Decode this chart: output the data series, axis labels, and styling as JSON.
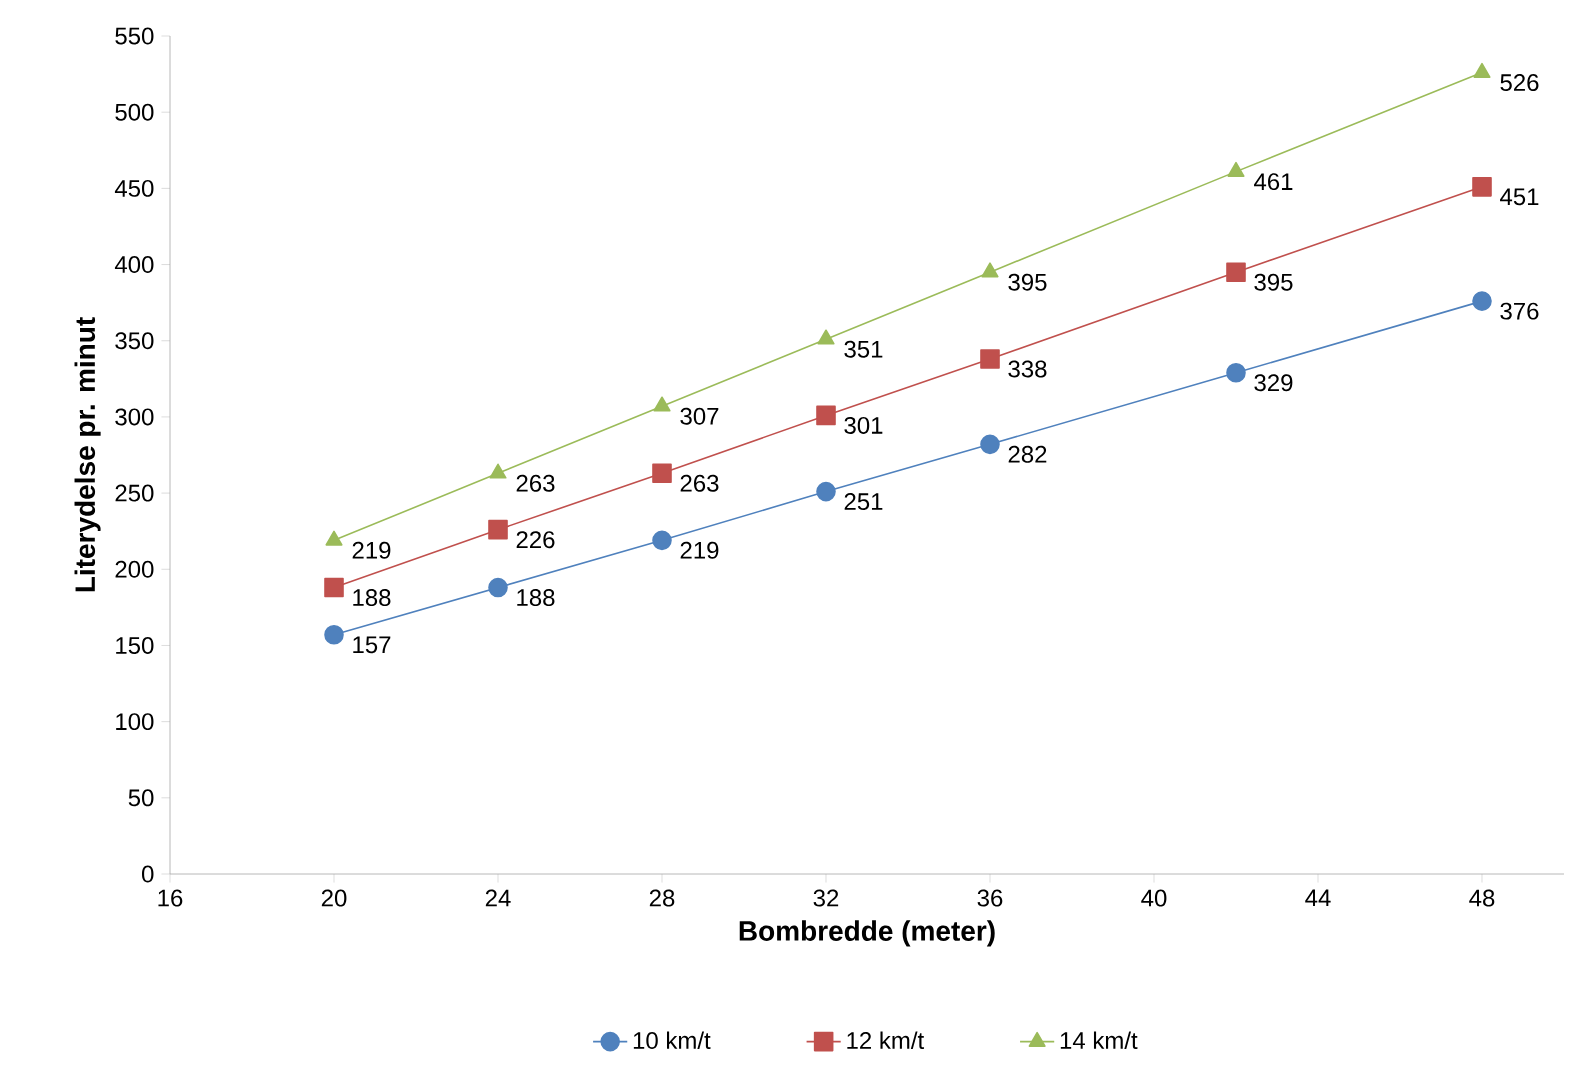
{
  "chart_data": {
    "type": "line",
    "xlabel": "Bombredde (meter)",
    "ylabel": "Literydelse pr. minut",
    "x": [
      20,
      24,
      28,
      32,
      36,
      42,
      48
    ],
    "series": [
      {
        "name": "10 km/t",
        "color": "#4f81bd",
        "marker": "circle",
        "values": [
          157,
          188,
          219,
          251,
          282,
          329,
          376
        ]
      },
      {
        "name": "12 km/t",
        "color": "#c0504d",
        "marker": "square",
        "values": [
          188,
          226,
          263,
          301,
          338,
          395,
          451
        ]
      },
      {
        "name": "14 km/t",
        "color": "#9bbb59",
        "marker": "triangle",
        "values": [
          219,
          263,
          307,
          351,
          395,
          461,
          526
        ]
      }
    ],
    "xlim": [
      16,
      50
    ],
    "xticks": [
      16,
      20,
      24,
      28,
      32,
      36,
      40,
      44,
      48
    ],
    "ylim": [
      0,
      550
    ],
    "yticks": [
      0,
      50,
      100,
      150,
      200,
      250,
      300,
      350,
      400,
      450,
      500,
      550
    ],
    "grid": false,
    "legend": "bottom",
    "data_labels": true
  }
}
